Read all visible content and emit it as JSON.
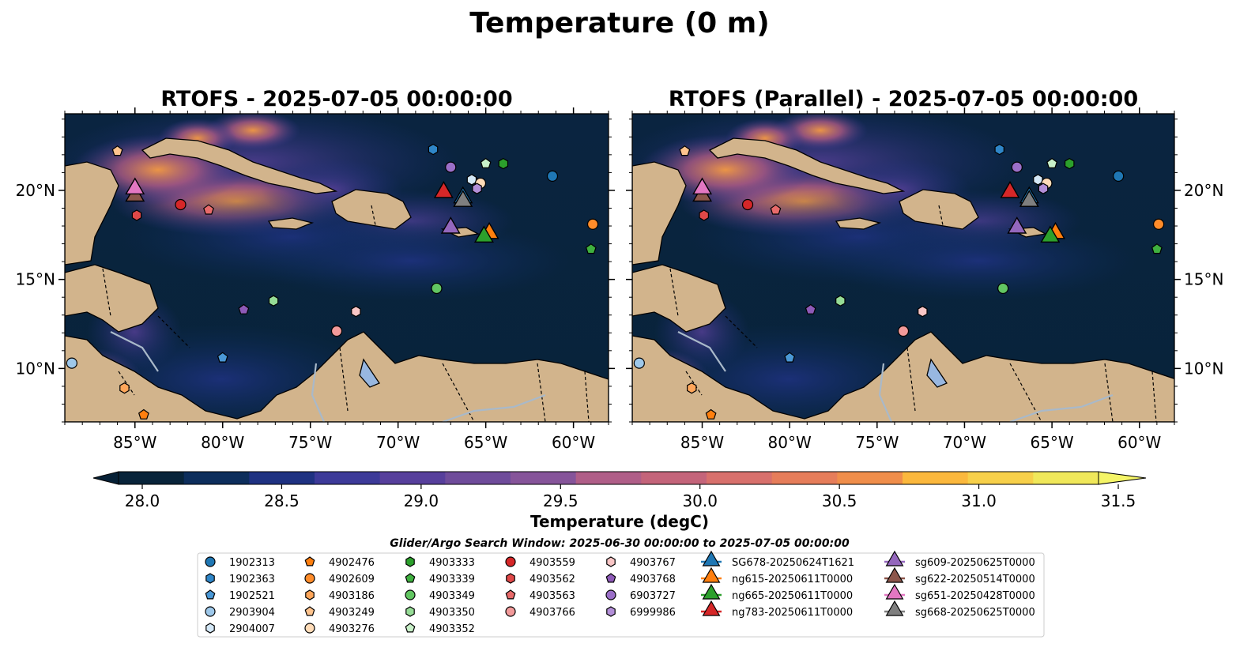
{
  "figure": {
    "suptitle": "Temperature (0 m)",
    "colorbar_label": "Temperature (degC)",
    "search_window": "Glider/Argo Search Window: 2025-06-30 00:00:00 to 2025-07-05 00:00:00"
  },
  "colors": {
    "land": "#d2b48c",
    "rivers": "#a9b9c9",
    "colormap": [
      "#08243a",
      "#0d2e5c",
      "#1f3282",
      "#2e3392",
      "#3d3a99",
      "#573f9c",
      "#6f4c9b",
      "#86549a",
      "#9c5a92",
      "#b05e88",
      "#c4647a",
      "#d8706c",
      "#e67d5a",
      "#f08e4b",
      "#f7a13f",
      "#fbb83d",
      "#f7d04a",
      "#f0e85a"
    ],
    "colorbar_over": "#f5f567",
    "colorbar_under": "#062036"
  },
  "chart_data": [
    {
      "type": "heatmap",
      "title": "RTOFS - 2025-07-05 00:00:00",
      "x_ticks": [
        "85°W",
        "80°W",
        "75°W",
        "70°W",
        "65°W",
        "60°W"
      ],
      "y_ticks": [
        "20°N",
        "15°N",
        "10°N"
      ],
      "xlim": [
        -89,
        -58
      ],
      "ylim": [
        7,
        24.3
      ],
      "color_range": [
        28.0,
        31.5
      ]
    },
    {
      "type": "heatmap",
      "title": "RTOFS (Parallel) - 2025-07-05 00:00:00",
      "x_ticks": [
        "85°W",
        "80°W",
        "75°W",
        "70°W",
        "65°W",
        "60°W"
      ],
      "y_ticks": [
        "20°N",
        "15°N",
        "10°N"
      ],
      "xlim": [
        -89,
        -58
      ],
      "ylim": [
        7,
        24.3
      ],
      "color_range": [
        28.0,
        31.5
      ]
    }
  ],
  "colorbar": {
    "ticks": [
      "28.0",
      "28.5",
      "29.0",
      "29.5",
      "30.0",
      "30.5",
      "31.0",
      "31.5"
    ],
    "tick_values": [
      28.0,
      28.5,
      29.0,
      29.5,
      30.0,
      30.5,
      31.0,
      31.5
    ],
    "range": [
      28.0,
      31.75
    ]
  },
  "markers": [
    {
      "id": "1902313",
      "marker": "circle",
      "color": "#1f77b4",
      "lon": -61.2,
      "lat": 20.8
    },
    {
      "id": "1902363",
      "marker": "hexagon",
      "color": "#2f86c8",
      "lon": -68.0,
      "lat": 22.3
    },
    {
      "id": "1902521",
      "marker": "pentagon",
      "color": "#4a98d6",
      "lon": -80.0,
      "lat": 10.6
    },
    {
      "id": "2903904",
      "marker": "circle",
      "color": "#9ec8ea",
      "lon": -88.6,
      "lat": 10.3
    },
    {
      "id": "2904007",
      "marker": "hexagon",
      "color": "#d4e8f7",
      "lon": -65.8,
      "lat": 20.6
    },
    {
      "id": "4902476",
      "marker": "pentagon",
      "color": "#ff7f0e",
      "lon": -84.5,
      "lat": 7.4
    },
    {
      "id": "4902609",
      "marker": "circle",
      "color": "#ff8c2a",
      "lon": -58.9,
      "lat": 18.1
    },
    {
      "id": "4903186",
      "marker": "hexagon",
      "color": "#ffa65a",
      "lon": -85.6,
      "lat": 8.9
    },
    {
      "id": "4903249",
      "marker": "pentagon",
      "color": "#ffc48e",
      "lon": -86.0,
      "lat": 22.2
    },
    {
      "id": "4903276",
      "marker": "circle",
      "color": "#ffdcb8",
      "lon": -65.3,
      "lat": 20.4
    },
    {
      "id": "4903333",
      "marker": "hexagon",
      "color": "#2ca02c",
      "lon": -64.0,
      "lat": 21.5
    },
    {
      "id": "4903339",
      "marker": "pentagon",
      "color": "#3fb03f",
      "lon": -59.0,
      "lat": 16.7
    },
    {
      "id": "4903349",
      "marker": "circle",
      "color": "#62c662",
      "lon": -67.8,
      "lat": 14.5
    },
    {
      "id": "4903350",
      "marker": "hexagon",
      "color": "#96dc96",
      "lon": -77.1,
      "lat": 13.8
    },
    {
      "id": "4903352",
      "marker": "pentagon",
      "color": "#c8f0c8",
      "lon": -65.0,
      "lat": 21.5
    },
    {
      "id": "4903559",
      "marker": "circle",
      "color": "#d62728",
      "lon": -82.4,
      "lat": 19.2
    },
    {
      "id": "4903562",
      "marker": "hexagon",
      "color": "#e04848",
      "lon": -84.9,
      "lat": 18.6
    },
    {
      "id": "4903563",
      "marker": "pentagon",
      "color": "#e86a6a",
      "lon": -80.8,
      "lat": 18.9
    },
    {
      "id": "4903766",
      "marker": "circle",
      "color": "#f29a9a",
      "lon": -73.5,
      "lat": 12.1
    },
    {
      "id": "4903767",
      "marker": "hexagon",
      "color": "#f9c6c6",
      "lon": -72.4,
      "lat": 13.2
    },
    {
      "id": "4903768",
      "marker": "pentagon",
      "color": "#8e5ab8",
      "lon": -78.8,
      "lat": 13.3
    },
    {
      "id": "6903727",
      "marker": "circle",
      "color": "#9b6fc8",
      "lon": -67.0,
      "lat": 21.3
    },
    {
      "id": "6999986",
      "marker": "hexagon",
      "color": "#b38fd8",
      "lon": -65.5,
      "lat": 20.1
    },
    {
      "id": "SG678-20250624T1621",
      "marker": "triangle",
      "color": "#1f77b4",
      "lon": -66.3,
      "lat": 19.5
    },
    {
      "id": "ng615-20250611T0000",
      "marker": "triangle",
      "color": "#ff7f0e",
      "lon": -64.8,
      "lat": 17.5
    },
    {
      "id": "ng665-20250611T0000",
      "marker": "triangle",
      "color": "#2ca02c",
      "lon": -65.1,
      "lat": 17.3
    },
    {
      "id": "ng783-20250611T0000",
      "marker": "triangle",
      "color": "#d62728",
      "lon": -67.4,
      "lat": 19.8
    },
    {
      "id": "sg609-20250625T0000",
      "marker": "triangle",
      "color": "#9467bd",
      "lon": -67.0,
      "lat": 17.8
    },
    {
      "id": "sg622-20250514T0000",
      "marker": "triangle",
      "color": "#8c564b",
      "lon": -85.0,
      "lat": 19.6
    },
    {
      "id": "sg651-20250428T0000",
      "marker": "triangle",
      "color": "#e377c2",
      "lon": -85.0,
      "lat": 20.0
    },
    {
      "id": "sg668-20250625T0000",
      "marker": "triangle",
      "color": "#7f7f7f",
      "lon": -66.3,
      "lat": 19.3
    }
  ]
}
